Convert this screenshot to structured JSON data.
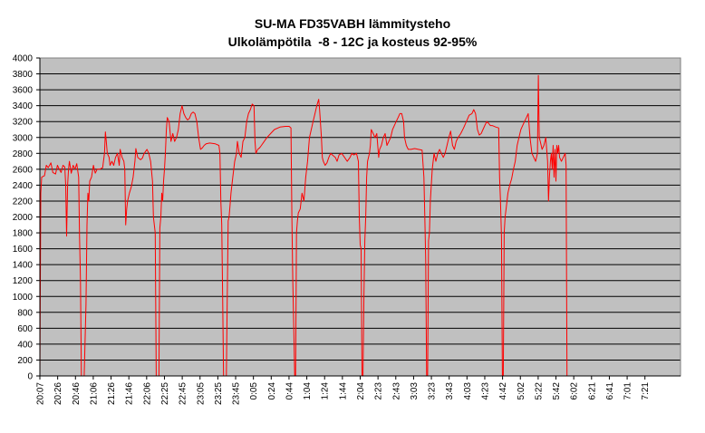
{
  "chart_data": {
    "type": "line",
    "title": "SU-MA FD35VABH lämmitysteho",
    "subtitle": "Ulkolämpötila  -8 - 12C ja kosteus 92-95%",
    "xlabel": "",
    "ylabel": "",
    "ylim": [
      0,
      4000
    ],
    "y_ticks": [
      "0",
      "200",
      "400",
      "600",
      "800",
      "1000",
      "1200",
      "1400",
      "1600",
      "1800",
      "2000",
      "2200",
      "2400",
      "2600",
      "2800",
      "3000",
      "3200",
      "3400",
      "3600",
      "3800",
      "4000"
    ],
    "x_tick_labels": [
      "20:07",
      "20:26",
      "20:46",
      "21:06",
      "21:26",
      "21:46",
      "22:06",
      "22:25",
      "22:45",
      "23:05",
      "23:25",
      "23:45",
      "0:05",
      "0:24",
      "0:44",
      "1:04",
      "1:24",
      "1:44",
      "2:04",
      "2:23",
      "2:43",
      "3:03",
      "3:23",
      "3:43",
      "4:03",
      "4:23",
      "4:42",
      "5:02",
      "5:22",
      "5:42",
      "6:02",
      "6:21",
      "6:41",
      "7:01",
      "7:21"
    ],
    "x_range_minutes": [
      0,
      694
    ],
    "grid": true,
    "plot_background": "#c0c0c0",
    "series": [
      {
        "color": "#ff0000",
        "points": [
          [
            0,
            0
          ],
          [
            1,
            2300
          ],
          [
            2,
            2500
          ],
          [
            5,
            2520
          ],
          [
            7,
            2650
          ],
          [
            9,
            2620
          ],
          [
            12,
            2680
          ],
          [
            14,
            2560
          ],
          [
            17,
            2540
          ],
          [
            19,
            2650
          ],
          [
            21,
            2600
          ],
          [
            23,
            2560
          ],
          [
            25,
            2650
          ],
          [
            27,
            2630
          ],
          [
            28,
            2400
          ],
          [
            29,
            1760
          ],
          [
            30,
            2400
          ],
          [
            31,
            2600
          ],
          [
            32,
            2700
          ],
          [
            34,
            2550
          ],
          [
            36,
            2650
          ],
          [
            38,
            2600
          ],
          [
            40,
            2670
          ],
          [
            42,
            2500
          ],
          [
            43,
            1740
          ],
          [
            44,
            1200
          ],
          [
            45,
            0
          ],
          [
            48,
            0
          ],
          [
            50,
            900
          ],
          [
            51,
            1900
          ],
          [
            52,
            2300
          ],
          [
            53,
            2200
          ],
          [
            54,
            2450
          ],
          [
            56,
            2500
          ],
          [
            58,
            2650
          ],
          [
            60,
            2550
          ],
          [
            62,
            2600
          ],
          [
            65,
            2600
          ],
          [
            68,
            2620
          ],
          [
            70,
            2800
          ],
          [
            71,
            3070
          ],
          [
            72,
            2950
          ],
          [
            73,
            2800
          ],
          [
            75,
            2750
          ],
          [
            76,
            2650
          ],
          [
            78,
            2700
          ],
          [
            80,
            2650
          ],
          [
            82,
            2750
          ],
          [
            84,
            2800
          ],
          [
            86,
            2650
          ],
          [
            87,
            2850
          ],
          [
            89,
            2750
          ],
          [
            91,
            2700
          ],
          [
            92,
            2600
          ],
          [
            93,
            1900
          ],
          [
            94,
            2100
          ],
          [
            95,
            2200
          ],
          [
            97,
            2300
          ],
          [
            99,
            2380
          ],
          [
            101,
            2500
          ],
          [
            103,
            2700
          ],
          [
            104,
            2860
          ],
          [
            106,
            2750
          ],
          [
            109,
            2720
          ],
          [
            111,
            2740
          ],
          [
            113,
            2800
          ],
          [
            116,
            2850
          ],
          [
            118,
            2800
          ],
          [
            120,
            2700
          ],
          [
            122,
            2450
          ],
          [
            123,
            2000
          ],
          [
            124,
            1900
          ],
          [
            125,
            1800
          ],
          [
            126,
            0
          ],
          [
            129,
            0
          ],
          [
            130,
            1860
          ],
          [
            131,
            2000
          ],
          [
            132,
            2300
          ],
          [
            133,
            2200
          ],
          [
            134,
            2450
          ],
          [
            135,
            2600
          ],
          [
            136,
            2800
          ],
          [
            137,
            3100
          ],
          [
            138,
            3250
          ],
          [
            140,
            3200
          ],
          [
            142,
            2950
          ],
          [
            144,
            3050
          ],
          [
            146,
            2950
          ],
          [
            148,
            3000
          ],
          [
            150,
            3100
          ],
          [
            152,
            3300
          ],
          [
            154,
            3400
          ],
          [
            156,
            3300
          ],
          [
            158,
            3250
          ],
          [
            160,
            3220
          ],
          [
            162,
            3240
          ],
          [
            164,
            3300
          ],
          [
            166,
            3320
          ],
          [
            168,
            3300
          ],
          [
            170,
            3200
          ],
          [
            172,
            3000
          ],
          [
            174,
            2850
          ],
          [
            176,
            2870
          ],
          [
            178,
            2900
          ],
          [
            180,
            2920
          ],
          [
            184,
            2930
          ],
          [
            190,
            2920
          ],
          [
            194,
            2900
          ],
          [
            195,
            2800
          ],
          [
            196,
            2200
          ],
          [
            197,
            1900
          ],
          [
            198,
            1000
          ],
          [
            199,
            0
          ],
          [
            202,
            0
          ],
          [
            203,
            1000
          ],
          [
            204,
            1950
          ],
          [
            205,
            2000
          ],
          [
            206,
            2150
          ],
          [
            207,
            2300
          ],
          [
            209,
            2500
          ],
          [
            211,
            2700
          ],
          [
            213,
            2800
          ],
          [
            214,
            2950
          ],
          [
            216,
            2800
          ],
          [
            218,
            2750
          ],
          [
            220,
            2950
          ],
          [
            222,
            3000
          ],
          [
            224,
            3200
          ],
          [
            226,
            3300
          ],
          [
            228,
            3350
          ],
          [
            230,
            3420
          ],
          [
            232,
            3400
          ],
          [
            233,
            2950
          ],
          [
            234,
            2800
          ],
          [
            236,
            2850
          ],
          [
            238,
            2870
          ],
          [
            240,
            2900
          ],
          [
            243,
            2950
          ],
          [
            246,
            3000
          ],
          [
            250,
            3050
          ],
          [
            254,
            3100
          ],
          [
            260,
            3130
          ],
          [
            266,
            3140
          ],
          [
            270,
            3140
          ],
          [
            272,
            3120
          ],
          [
            273,
            2000
          ],
          [
            274,
            1200
          ],
          [
            275,
            600
          ],
          [
            276,
            0
          ],
          [
            277,
            0
          ],
          [
            278,
            1800
          ],
          [
            279,
            1950
          ],
          [
            280,
            2050
          ],
          [
            282,
            2100
          ],
          [
            284,
            2300
          ],
          [
            286,
            2200
          ],
          [
            288,
            2500
          ],
          [
            290,
            2700
          ],
          [
            292,
            3000
          ],
          [
            294,
            3100
          ],
          [
            296,
            3200
          ],
          [
            298,
            3300
          ],
          [
            300,
            3400
          ],
          [
            302,
            3480
          ],
          [
            303,
            3350
          ],
          [
            305,
            3000
          ],
          [
            306,
            2750
          ],
          [
            307,
            2700
          ],
          [
            309,
            2650
          ],
          [
            311,
            2680
          ],
          [
            313,
            2750
          ],
          [
            315,
            2800
          ],
          [
            317,
            2780
          ],
          [
            320,
            2750
          ],
          [
            322,
            2700
          ],
          [
            324,
            2780
          ],
          [
            327,
            2800
          ],
          [
            330,
            2750
          ],
          [
            333,
            2700
          ],
          [
            336,
            2750
          ],
          [
            338,
            2800
          ],
          [
            340,
            2780
          ],
          [
            343,
            2800
          ],
          [
            345,
            2700
          ],
          [
            346,
            2000
          ],
          [
            347,
            1650
          ],
          [
            348,
            1600
          ],
          [
            349,
            0
          ],
          [
            350,
            0
          ],
          [
            351,
            1000
          ],
          [
            352,
            1700
          ],
          [
            353,
            2000
          ],
          [
            354,
            2500
          ],
          [
            355,
            2700
          ],
          [
            357,
            2800
          ],
          [
            358,
            2900
          ],
          [
            359,
            3100
          ],
          [
            361,
            3050
          ],
          [
            363,
            3000
          ],
          [
            365,
            3050
          ],
          [
            367,
            2750
          ],
          [
            368,
            2850
          ],
          [
            370,
            2900
          ],
          [
            372,
            3000
          ],
          [
            374,
            3050
          ],
          [
            376,
            2900
          ],
          [
            378,
            2950
          ],
          [
            380,
            3000
          ],
          [
            382,
            3100
          ],
          [
            384,
            3150
          ],
          [
            386,
            3200
          ],
          [
            388,
            3250
          ],
          [
            390,
            3300
          ],
          [
            392,
            3300
          ],
          [
            394,
            3200
          ],
          [
            395,
            3000
          ],
          [
            397,
            2900
          ],
          [
            399,
            2850
          ],
          [
            402,
            2850
          ],
          [
            406,
            2860
          ],
          [
            410,
            2850
          ],
          [
            414,
            2840
          ],
          [
            416,
            2500
          ],
          [
            417,
            2000
          ],
          [
            418,
            1450
          ],
          [
            419,
            0
          ],
          [
            420,
            0
          ],
          [
            421,
            1700
          ],
          [
            422,
            1800
          ],
          [
            423,
            2200
          ],
          [
            425,
            2600
          ],
          [
            427,
            2800
          ],
          [
            429,
            2700
          ],
          [
            431,
            2800
          ],
          [
            433,
            2850
          ],
          [
            435,
            2800
          ],
          [
            437,
            2750
          ],
          [
            439,
            2800
          ],
          [
            441,
            2900
          ],
          [
            443,
            3000
          ],
          [
            445,
            3080
          ],
          [
            447,
            2900
          ],
          [
            449,
            2850
          ],
          [
            451,
            2950
          ],
          [
            453,
            3000
          ],
          [
            456,
            3050
          ],
          [
            459,
            3120
          ],
          [
            462,
            3200
          ],
          [
            465,
            3280
          ],
          [
            468,
            3300
          ],
          [
            470,
            3350
          ],
          [
            472,
            3300
          ],
          [
            474,
            3100
          ],
          [
            476,
            3030
          ],
          [
            478,
            3050
          ],
          [
            480,
            3100
          ],
          [
            482,
            3150
          ],
          [
            484,
            3200
          ],
          [
            486,
            3180
          ],
          [
            488,
            3150
          ],
          [
            490,
            3150
          ],
          [
            494,
            3130
          ],
          [
            497,
            3120
          ],
          [
            498,
            2500
          ],
          [
            499,
            2200
          ],
          [
            500,
            1750
          ],
          [
            501,
            0
          ],
          [
            502,
            0
          ],
          [
            503,
            1800
          ],
          [
            504,
            2000
          ],
          [
            505,
            2100
          ],
          [
            507,
            2300
          ],
          [
            509,
            2400
          ],
          [
            511,
            2480
          ],
          [
            513,
            2600
          ],
          [
            515,
            2700
          ],
          [
            517,
            2900
          ],
          [
            519,
            3000
          ],
          [
            521,
            3100
          ],
          [
            523,
            3150
          ],
          [
            525,
            3200
          ],
          [
            527,
            3250
          ],
          [
            529,
            3300
          ],
          [
            531,
            3000
          ],
          [
            533,
            2800
          ],
          [
            535,
            2750
          ],
          [
            537,
            2700
          ],
          [
            539,
            2800
          ],
          [
            540,
            3780
          ],
          [
            541,
            3000
          ],
          [
            542,
            2950
          ],
          [
            544,
            2850
          ],
          [
            546,
            2900
          ],
          [
            548,
            3000
          ],
          [
            550,
            2700
          ],
          [
            551,
            2200
          ],
          [
            552,
            2500
          ],
          [
            553,
            2700
          ],
          [
            554,
            2800
          ],
          [
            555,
            2600
          ],
          [
            556,
            2900
          ],
          [
            557,
            2500
          ],
          [
            558,
            2850
          ],
          [
            559,
            2450
          ],
          [
            560,
            2900
          ],
          [
            561,
            2800
          ],
          [
            562,
            2900
          ],
          [
            563,
            2750
          ],
          [
            565,
            2700
          ],
          [
            567,
            2750
          ],
          [
            569,
            2800
          ],
          [
            570,
            2650
          ],
          [
            571,
            0
          ]
        ]
      }
    ]
  }
}
